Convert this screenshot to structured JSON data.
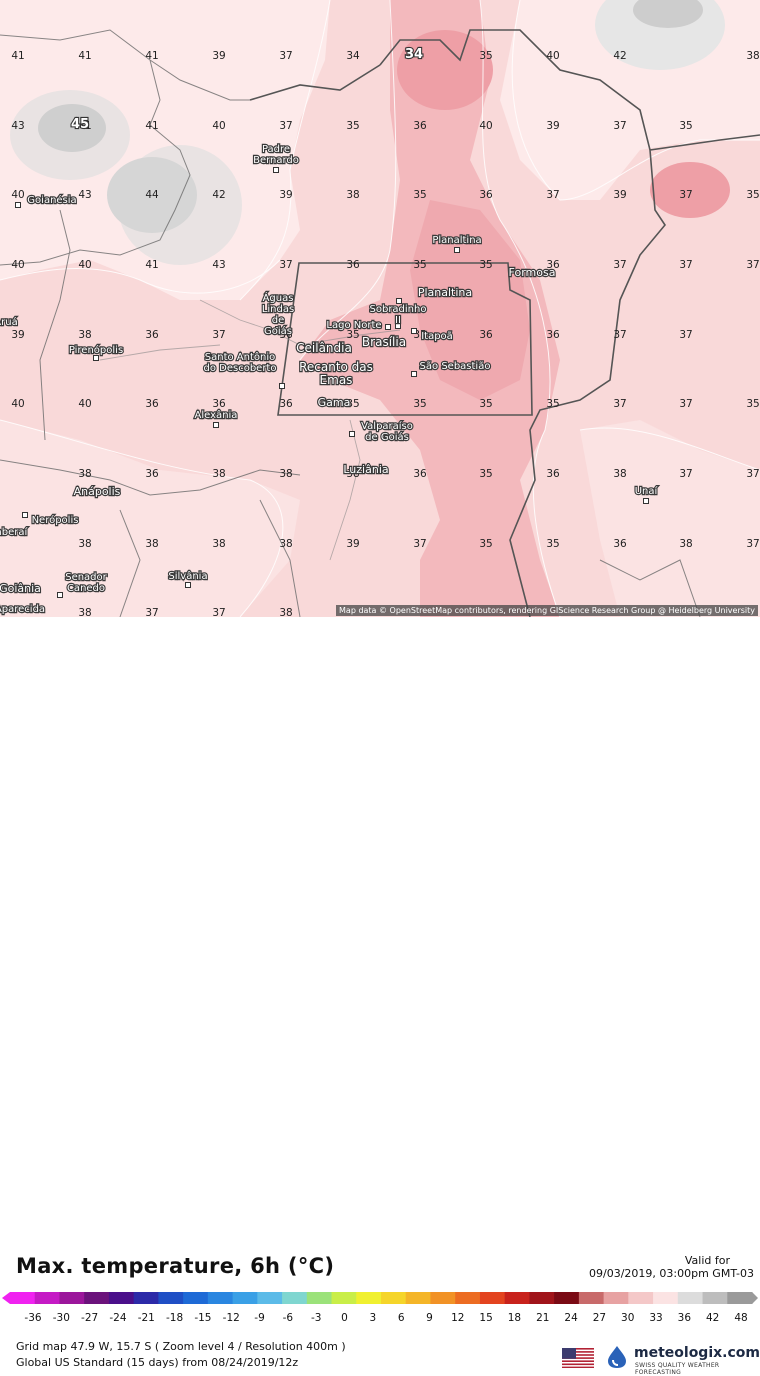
{
  "map": {
    "attribution": "Map data © OpenStreetMap contributors, rendering GIScience Research Group @ Heidelberg University",
    "grid_values": [
      [
        "41",
        "41",
        "41",
        "39",
        "37",
        "34",
        "35",
        "40",
        "42",
        "38"
      ],
      [
        "43",
        "41",
        "41",
        "40",
        "37",
        "35",
        "36",
        "40",
        "39",
        "37",
        "35"
      ],
      [
        "40",
        "43",
        "44",
        "42",
        "39",
        "38",
        "35",
        "36",
        "37",
        "39",
        "37",
        "35"
      ],
      [
        "40",
        "40",
        "41",
        "43",
        "37",
        "36",
        "35",
        "35",
        "36",
        "37",
        "37",
        "37"
      ],
      [
        "39",
        "38",
        "36",
        "37",
        "36",
        "35",
        "35",
        "36",
        "36",
        "37",
        "37"
      ],
      [
        "40",
        "40",
        "36",
        "36",
        "36",
        "35",
        "35",
        "35",
        "35",
        "37",
        "37",
        "35"
      ],
      [
        "38",
        "36",
        "38",
        "38",
        "38",
        "36",
        "35",
        "36",
        "38",
        "37",
        "37"
      ],
      [
        "38",
        "38",
        "38",
        "38",
        "39",
        "37",
        "35",
        "35",
        "36",
        "38",
        "37"
      ],
      [
        "38",
        "37",
        "37",
        "38"
      ]
    ],
    "extremes": [
      {
        "label": "45"
      },
      {
        "label": "34"
      }
    ],
    "cities": [
      "Goianésia",
      "Padre Bernardo",
      "Planaltina",
      "Formosa",
      "Águas Lindas de Goiás",
      "Planaltina",
      "Sobradinho II",
      "Lago Norte",
      "Itapoã",
      "Brasília",
      "Ceilândia",
      "Santo Antônio do Descoberto",
      "Recanto das Emas",
      "São Sebastião",
      "Gama",
      "Alexânia",
      "Valparaíso de Goiás",
      "Luziânia",
      "Pirenópolis",
      "Anápolis",
      "Nerópolis",
      "Unaí",
      "Senador Canedo",
      "Silvânia",
      "Goiânia",
      "Aparecida",
      "Aruá",
      "Itaberaí"
    ]
  },
  "legend": {
    "title": "Max. temperature, 6h (°C)",
    "valid_label": "Valid for",
    "valid_time": "09/03/2019, 03:00pm GMT-03",
    "ticks": [
      "-36",
      "-30",
      "-27",
      "-24",
      "-21",
      "-18",
      "-15",
      "-12",
      "-9",
      "-6",
      "-3",
      "0",
      "3",
      "6",
      "9",
      "12",
      "15",
      "18",
      "21",
      "24",
      "27",
      "30",
      "33",
      "36",
      "42",
      "48"
    ],
    "colors": [
      "#f022f0",
      "#c51ac5",
      "#9b169b",
      "#6b127b",
      "#4a0f8a",
      "#2c2aa8",
      "#1f4fc5",
      "#1e6ad6",
      "#2a86e0",
      "#3aa0e6",
      "#5cbbe8",
      "#7fd6d0",
      "#9be27a",
      "#c9ee48",
      "#f0f030",
      "#f5d52a",
      "#f4b528",
      "#f19226",
      "#ec6c22",
      "#e3441f",
      "#c8221c",
      "#a0141a",
      "#7a0a14",
      "#c86a6a",
      "#e7a2a2",
      "#f4c8c8",
      "#fbe3e3",
      "#dcdcdc",
      "#bdbdbd",
      "#9a9a9a"
    ]
  },
  "meta": {
    "line1": "Grid map 47.9 W, 15.7 S ( Zoom level 4 / Resolution 400m )",
    "line2": "Global US Standard (15 days) from 08/24/2019/12z"
  },
  "brand": {
    "name": "meteologix.com",
    "tagline": "SWISS QUALITY WEATHER FORECASTING"
  }
}
